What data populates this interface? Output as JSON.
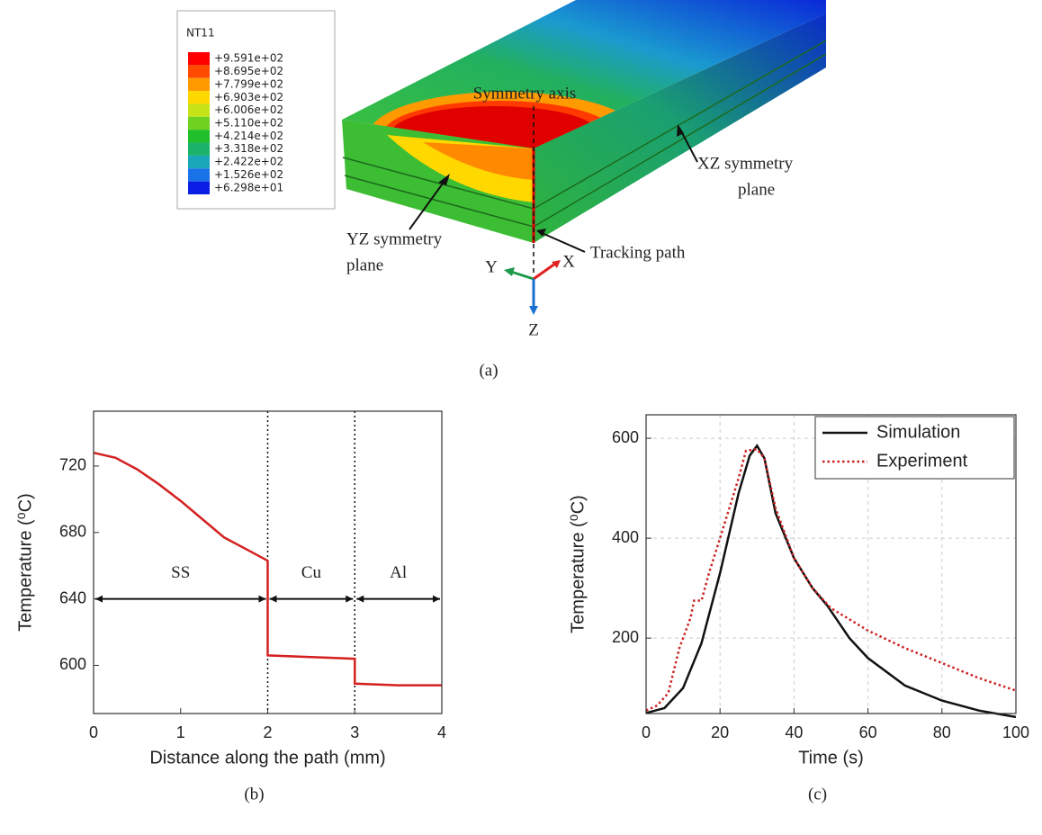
{
  "figure_a": {
    "legend_title": "NT11",
    "legend_labels": [
      "+9.591e+02",
      "+8.695e+02",
      "+7.799e+02",
      "+6.903e+02",
      "+6.006e+02",
      "+5.110e+02",
      "+4.214e+02",
      "+3.318e+02",
      "+2.422e+02",
      "+1.526e+02",
      "+6.298e+01"
    ],
    "legend_colors": [
      "#ff0000",
      "#ff4a00",
      "#ff9a00",
      "#ffd800",
      "#c6e318",
      "#6fd220",
      "#1fc02a",
      "#1bb36a",
      "#1aa6b9",
      "#1a72e8",
      "#0a1ee6"
    ],
    "symmetry_axis": "Symmetry axis",
    "xz_plane": [
      "XZ symmetry",
      "plane"
    ],
    "yz_plane": [
      "YZ symmetry",
      "plane"
    ],
    "tracking_path": "Tracking path",
    "axes": [
      "Y",
      "X",
      "Z"
    ],
    "label": "(a)"
  },
  "chart_data": [
    {
      "type": "line",
      "xlabel": "Distance along the path (mm)",
      "ylabel": "Temperature (⁰C)",
      "panel_label": "(b)",
      "xlim": [
        0,
        4
      ],
      "ylim": [
        571,
        753
      ],
      "xticks": [
        0,
        1,
        2,
        3,
        4
      ],
      "yticks": [
        600,
        640,
        680,
        720
      ],
      "vlines": [
        2,
        3
      ],
      "regions": [
        {
          "label": "SS",
          "from": 0,
          "to": 2
        },
        {
          "label": "Cu",
          "from": 2,
          "to": 3
        },
        {
          "label": "Al",
          "from": 3,
          "to": 4
        }
      ],
      "region_y": 640,
      "series": [
        {
          "color": "#d42020",
          "line_style": "solid",
          "x": [
            0,
            0.25,
            0.5,
            0.75,
            1,
            1.25,
            1.5,
            1.75,
            2,
            2,
            2.5,
            3,
            3,
            3.5,
            4
          ],
          "values": [
            728,
            725,
            718,
            709,
            699,
            688,
            677,
            670,
            663,
            606,
            605,
            604,
            589,
            588,
            588
          ]
        }
      ]
    },
    {
      "type": "line",
      "xlabel": "Time (s)",
      "ylabel": "Temperature (⁰C)",
      "panel_label": "(c)",
      "xlim": [
        0,
        100
      ],
      "ylim": [
        49,
        647
      ],
      "xticks": [
        0,
        20,
        40,
        60,
        80,
        100
      ],
      "yticks": [
        200,
        400,
        600
      ],
      "grid": true,
      "legend": "upper right",
      "series": [
        {
          "name": "Simulation",
          "color": "#111111",
          "line_style": "solid",
          "x": [
            0,
            5,
            10,
            15,
            20,
            25,
            28,
            30,
            32,
            35,
            40,
            45,
            49,
            55,
            60,
            70,
            80,
            90,
            100
          ],
          "values": [
            50,
            60,
            100,
            190,
            330,
            490,
            565,
            585,
            560,
            450,
            360,
            300,
            265,
            200,
            160,
            105,
            75,
            55,
            42
          ]
        },
        {
          "name": "Experiment",
          "color": "#cc2222",
          "line_style": "dotted",
          "x": [
            0,
            3,
            6,
            9,
            12,
            13,
            15,
            17,
            20,
            25,
            27,
            30,
            32,
            35,
            40,
            45,
            50,
            60,
            70,
            80,
            90,
            100
          ],
          "values": [
            55,
            65,
            90,
            180,
            240,
            275,
            275,
            330,
            400,
            520,
            575,
            578,
            560,
            460,
            360,
            300,
            260,
            215,
            180,
            150,
            120,
            95
          ]
        }
      ]
    }
  ]
}
